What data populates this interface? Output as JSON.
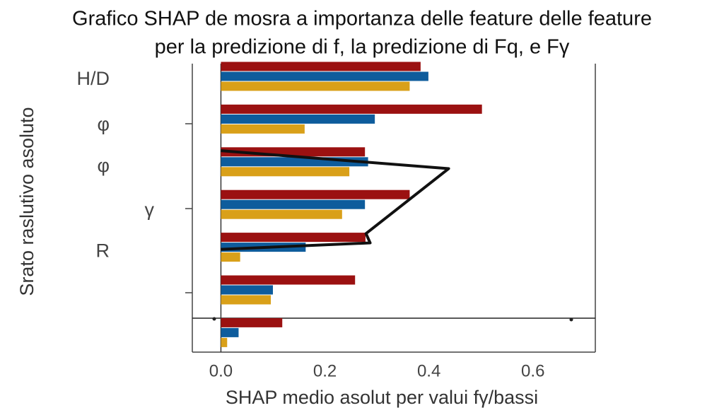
{
  "chart_data": {
    "type": "bar",
    "orientation": "horizontal",
    "title": [
      "Grafico SHAP de mosra a importanza delle feature delle feature",
      "per la predizione di f, la predizione di Fq, e Fγ"
    ],
    "x_label": "SHAP medio asolut per valui  fγ/bassi",
    "y_label": "Srato raslutivo asoluto",
    "categories": [
      "H/D",
      "φ",
      "φ",
      "γ",
      "R",
      null,
      null
    ],
    "series": [
      {
        "color": "#9b1111",
        "values": [
          0.384,
          0.502,
          0.277,
          0.363,
          0.278,
          0.258,
          0.118
        ]
      },
      {
        "color": "#0e5c9c",
        "values": [
          0.399,
          0.296,
          0.283,
          0.277,
          0.163,
          0.1,
          0.034
        ]
      },
      {
        "color": "#d9a019",
        "values": [
          0.363,
          0.161,
          0.247,
          0.233,
          0.037,
          0.096,
          0.012
        ]
      }
    ],
    "line": {
      "color": "#111111",
      "values": [
        0,
        0.438,
        0.279,
        0.287,
        0
      ],
      "positions": [
        1.74,
        2.16,
        3.68,
        3.9,
        4.05
      ]
    },
    "xlim": [
      -0.055,
      0.72
    ],
    "xticks": [
      {
        "value": 0,
        "label": "0.0"
      },
      0.2,
      0.4,
      0.6
    ]
  }
}
